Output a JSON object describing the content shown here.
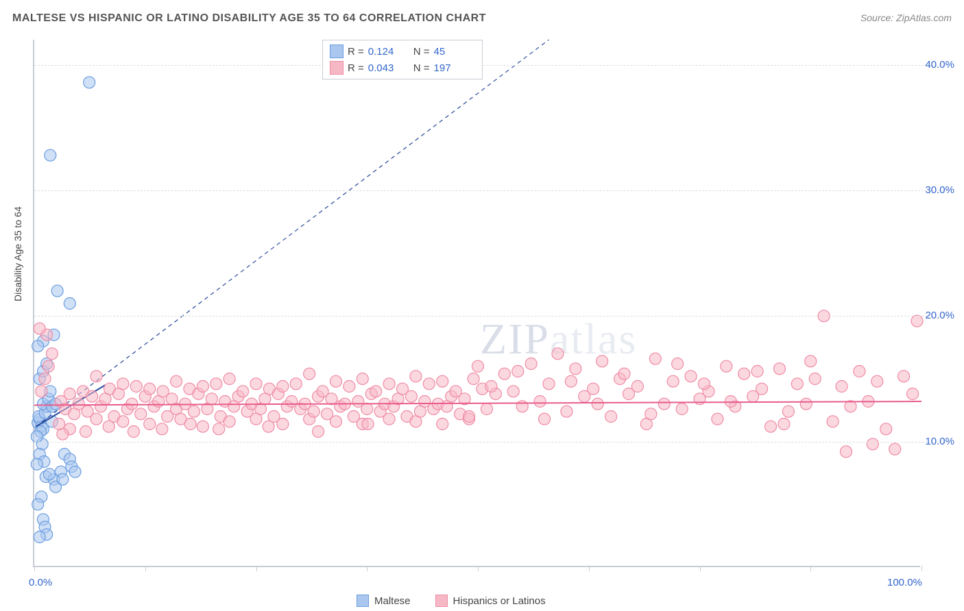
{
  "title": "MALTESE VS HISPANIC OR LATINO DISABILITY AGE 35 TO 64 CORRELATION CHART",
  "source": "Source: ZipAtlas.com",
  "ylabel": "Disability Age 35 to 64",
  "watermark_a": "ZIP",
  "watermark_b": "atlas",
  "chart": {
    "type": "scatter",
    "xlim": [
      0,
      100
    ],
    "ylim": [
      0,
      42
    ],
    "yticks": [
      10,
      20,
      30,
      40
    ],
    "ytick_labels": [
      "10.0%",
      "20.0%",
      "30.0%",
      "40.0%"
    ],
    "xticks": [
      0,
      12.5,
      25,
      37.5,
      50,
      62.5,
      75,
      87.5,
      100
    ],
    "xtick_labels_shown": {
      "0": "0.0%",
      "100": "100.0%"
    },
    "background_color": "#ffffff",
    "grid_color": "#dddddd",
    "axis_color": "#c7ccd4",
    "title_fontsize": 16,
    "label_fontsize": 14,
    "tick_label_fontsize": 15,
    "tick_label_color": "#3366cc",
    "marker_radius": 8.5,
    "marker_opacity": 0.55,
    "series": [
      {
        "name": "Maltese",
        "color_fill": "#a9c7ef",
        "color_stroke": "#6b9de0",
        "R": "0.124",
        "N": "45",
        "trend": {
          "x1": 0.2,
          "y1": 11.2,
          "x2": 8,
          "y2": 14.5,
          "color": "#27499a",
          "width": 2
        },
        "diagonal_guide": {
          "x1": 0.2,
          "y1": 11.2,
          "x2": 58,
          "y2": 42,
          "color": "#27499a",
          "dash": "6 5",
          "width": 1.2
        },
        "points": [
          [
            0.4,
            11.5
          ],
          [
            0.6,
            11.8
          ],
          [
            0.8,
            11.2
          ],
          [
            0.5,
            12.0
          ],
          [
            1.0,
            11.0
          ],
          [
            1.2,
            12.3
          ],
          [
            0.7,
            10.8
          ],
          [
            1.4,
            12.8
          ],
          [
            1.0,
            13.0
          ],
          [
            1.6,
            13.4
          ],
          [
            2.0,
            12.8
          ],
          [
            1.8,
            14.0
          ],
          [
            2.4,
            13.0
          ],
          [
            2.0,
            11.6
          ],
          [
            0.9,
            9.8
          ],
          [
            0.6,
            9.0
          ],
          [
            1.1,
            8.4
          ],
          [
            0.3,
            8.2
          ],
          [
            1.3,
            7.2
          ],
          [
            2.2,
            7.0
          ],
          [
            2.4,
            6.4
          ],
          [
            0.8,
            5.6
          ],
          [
            0.4,
            5.0
          ],
          [
            1.0,
            3.8
          ],
          [
            1.2,
            3.2
          ],
          [
            1.4,
            2.6
          ],
          [
            0.6,
            2.4
          ],
          [
            1.7,
            7.4
          ],
          [
            3.0,
            7.6
          ],
          [
            3.2,
            7.0
          ],
          [
            3.4,
            9.0
          ],
          [
            4.0,
            8.6
          ],
          [
            4.2,
            8.0
          ],
          [
            4.6,
            7.6
          ],
          [
            0.6,
            15.0
          ],
          [
            1.0,
            15.6
          ],
          [
            1.4,
            16.2
          ],
          [
            1.0,
            18.0
          ],
          [
            0.4,
            17.6
          ],
          [
            2.2,
            18.5
          ],
          [
            2.6,
            22.0
          ],
          [
            4.0,
            21.0
          ],
          [
            1.8,
            32.8
          ],
          [
            6.2,
            38.6
          ],
          [
            0.3,
            10.4
          ]
        ]
      },
      {
        "name": "Hispanics or Latinos",
        "color_fill": "#f7b8c6",
        "color_stroke": "#ef8aa4",
        "R": "0.043",
        "N": "197",
        "trend": {
          "x1": 0,
          "y1": 12.9,
          "x2": 100,
          "y2": 13.2,
          "color": "#e85b8c",
          "width": 2
        },
        "points": [
          [
            0.8,
            14.0
          ],
          [
            1.2,
            15.0
          ],
          [
            1.6,
            16.0
          ],
          [
            2.0,
            17.0
          ],
          [
            1.4,
            18.5
          ],
          [
            0.6,
            19.0
          ],
          [
            3.0,
            13.2
          ],
          [
            3.5,
            12.6
          ],
          [
            4.0,
            13.8
          ],
          [
            4.5,
            12.2
          ],
          [
            5.0,
            13.0
          ],
          [
            5.5,
            14.0
          ],
          [
            6.0,
            12.4
          ],
          [
            6.5,
            13.6
          ],
          [
            7.0,
            11.8
          ],
          [
            7.5,
            12.8
          ],
          [
            8.0,
            13.4
          ],
          [
            8.5,
            14.2
          ],
          [
            9.0,
            12.0
          ],
          [
            9.5,
            13.8
          ],
          [
            10.0,
            11.6
          ],
          [
            10.5,
            12.6
          ],
          [
            11.0,
            13.0
          ],
          [
            11.5,
            14.4
          ],
          [
            12.0,
            12.2
          ],
          [
            12.5,
            13.6
          ],
          [
            13.0,
            11.4
          ],
          [
            13.5,
            12.8
          ],
          [
            14.0,
            13.2
          ],
          [
            14.5,
            14.0
          ],
          [
            15.0,
            12.0
          ],
          [
            15.5,
            13.4
          ],
          [
            16.0,
            12.6
          ],
          [
            16.5,
            11.8
          ],
          [
            17.0,
            13.0
          ],
          [
            17.5,
            14.2
          ],
          [
            18.0,
            12.4
          ],
          [
            18.5,
            13.8
          ],
          [
            19.0,
            11.2
          ],
          [
            19.5,
            12.6
          ],
          [
            20.0,
            13.4
          ],
          [
            20.5,
            14.6
          ],
          [
            21.0,
            12.0
          ],
          [
            21.5,
            13.2
          ],
          [
            22.0,
            11.6
          ],
          [
            22.5,
            12.8
          ],
          [
            23.0,
            13.6
          ],
          [
            23.5,
            14.0
          ],
          [
            24.0,
            12.4
          ],
          [
            24.5,
            13.0
          ],
          [
            25.0,
            11.8
          ],
          [
            25.5,
            12.6
          ],
          [
            26.0,
            13.4
          ],
          [
            26.5,
            14.2
          ],
          [
            27.0,
            12.0
          ],
          [
            27.5,
            13.8
          ],
          [
            28.0,
            11.4
          ],
          [
            28.5,
            12.8
          ],
          [
            29.0,
            13.2
          ],
          [
            29.5,
            14.6
          ],
          [
            30.0,
            12.6
          ],
          [
            30.5,
            13.0
          ],
          [
            31.0,
            11.8
          ],
          [
            31.5,
            12.4
          ],
          [
            32.0,
            13.6
          ],
          [
            32.5,
            14.0
          ],
          [
            33.0,
            12.2
          ],
          [
            33.5,
            13.4
          ],
          [
            34.0,
            11.6
          ],
          [
            34.5,
            12.8
          ],
          [
            35.0,
            13.0
          ],
          [
            35.5,
            14.4
          ],
          [
            36.0,
            12.0
          ],
          [
            36.5,
            13.2
          ],
          [
            37.0,
            11.4
          ],
          [
            37.5,
            12.6
          ],
          [
            38.0,
            13.8
          ],
          [
            38.5,
            14.0
          ],
          [
            39.0,
            12.4
          ],
          [
            39.5,
            13.0
          ],
          [
            40.0,
            11.8
          ],
          [
            40.5,
            12.8
          ],
          [
            41.0,
            13.4
          ],
          [
            41.5,
            14.2
          ],
          [
            42.0,
            12.0
          ],
          [
            42.5,
            13.6
          ],
          [
            43.0,
            11.6
          ],
          [
            43.5,
            12.4
          ],
          [
            44.0,
            13.2
          ],
          [
            44.5,
            14.6
          ],
          [
            45.0,
            12.6
          ],
          [
            45.5,
            13.0
          ],
          [
            46.0,
            11.4
          ],
          [
            46.5,
            12.8
          ],
          [
            47.0,
            13.6
          ],
          [
            47.5,
            14.0
          ],
          [
            48.0,
            12.2
          ],
          [
            48.5,
            13.4
          ],
          [
            49.0,
            11.8
          ],
          [
            49.5,
            15.0
          ],
          [
            50.0,
            16.0
          ],
          [
            50.5,
            14.2
          ],
          [
            51.0,
            12.6
          ],
          [
            52.0,
            13.8
          ],
          [
            53.0,
            15.4
          ],
          [
            54.0,
            14.0
          ],
          [
            55.0,
            12.8
          ],
          [
            56.0,
            16.2
          ],
          [
            57.0,
            13.2
          ],
          [
            58.0,
            14.6
          ],
          [
            59.0,
            17.0
          ],
          [
            60.0,
            12.4
          ],
          [
            61.0,
            15.8
          ],
          [
            62.0,
            13.6
          ],
          [
            63.0,
            14.2
          ],
          [
            64.0,
            16.4
          ],
          [
            65.0,
            12.0
          ],
          [
            66.0,
            15.0
          ],
          [
            67.0,
            13.8
          ],
          [
            68.0,
            14.4
          ],
          [
            69.0,
            11.4
          ],
          [
            70.0,
            16.6
          ],
          [
            71.0,
            13.0
          ],
          [
            72.0,
            14.8
          ],
          [
            73.0,
            12.6
          ],
          [
            74.0,
            15.2
          ],
          [
            75.0,
            13.4
          ],
          [
            76.0,
            14.0
          ],
          [
            77.0,
            11.8
          ],
          [
            78.0,
            16.0
          ],
          [
            79.0,
            12.8
          ],
          [
            80.0,
            15.4
          ],
          [
            81.0,
            13.6
          ],
          [
            82.0,
            14.2
          ],
          [
            83.0,
            11.2
          ],
          [
            84.0,
            15.8
          ],
          [
            85.0,
            12.4
          ],
          [
            86.0,
            14.6
          ],
          [
            87.0,
            13.0
          ],
          [
            88.0,
            15.0
          ],
          [
            89.0,
            20.0
          ],
          [
            90.0,
            11.6
          ],
          [
            91.0,
            14.4
          ],
          [
            92.0,
            12.8
          ],
          [
            93.0,
            15.6
          ],
          [
            94.0,
            13.2
          ],
          [
            95.0,
            14.8
          ],
          [
            96.0,
            11.0
          ],
          [
            97.0,
            9.4
          ],
          [
            98.0,
            15.2
          ],
          [
            99.0,
            13.8
          ],
          [
            99.5,
            19.6
          ],
          [
            94.5,
            9.8
          ],
          [
            91.5,
            9.2
          ],
          [
            87.5,
            16.4
          ],
          [
            84.5,
            11.4
          ],
          [
            81.5,
            15.6
          ],
          [
            78.5,
            13.2
          ],
          [
            75.5,
            14.6
          ],
          [
            72.5,
            16.2
          ],
          [
            69.5,
            12.2
          ],
          [
            66.5,
            15.4
          ],
          [
            63.5,
            13.0
          ],
          [
            60.5,
            14.8
          ],
          [
            57.5,
            11.8
          ],
          [
            54.5,
            15.6
          ],
          [
            51.5,
            14.4
          ],
          [
            49.0,
            12.0
          ],
          [
            46.0,
            14.8
          ],
          [
            43.0,
            15.2
          ],
          [
            40.0,
            14.6
          ],
          [
            37.0,
            15.0
          ],
          [
            34.0,
            14.8
          ],
          [
            31.0,
            15.4
          ],
          [
            28.0,
            14.4
          ],
          [
            25.0,
            14.6
          ],
          [
            22.0,
            15.0
          ],
          [
            19.0,
            14.4
          ],
          [
            16.0,
            14.8
          ],
          [
            13.0,
            14.2
          ],
          [
            10.0,
            14.6
          ],
          [
            7.0,
            15.2
          ],
          [
            4.0,
            11.0
          ],
          [
            3.2,
            10.6
          ],
          [
            2.8,
            11.4
          ],
          [
            5.8,
            10.8
          ],
          [
            8.4,
            11.2
          ],
          [
            11.2,
            10.8
          ],
          [
            14.4,
            11.0
          ],
          [
            17.6,
            11.4
          ],
          [
            20.8,
            11.0
          ],
          [
            26.4,
            11.2
          ],
          [
            32.0,
            10.8
          ],
          [
            37.6,
            11.4
          ]
        ]
      }
    ]
  },
  "legend_top_labels": {
    "R": "R  =",
    "N": "N  ="
  },
  "legend_bottom": [
    "Maltese",
    "Hispanics or Latinos"
  ]
}
